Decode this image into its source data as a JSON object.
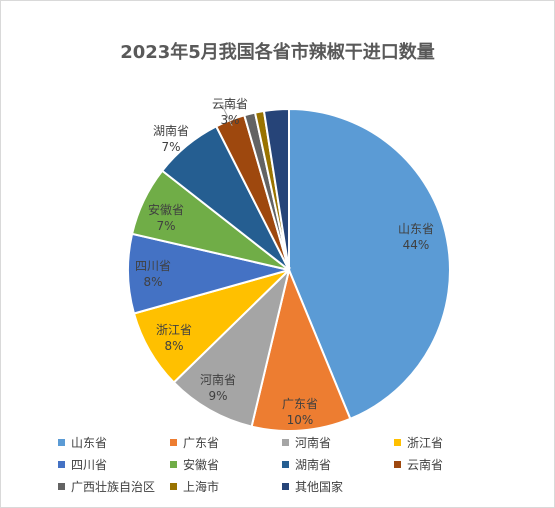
{
  "chart_data": {
    "type": "pie",
    "title": "2023年5月我国各省市辣椒干进口数量",
    "legend_position": "bottom",
    "slices": [
      {
        "name": "山东省",
        "value": 44,
        "label": "44%",
        "color": "#5b9bd5",
        "label_color": "#404040"
      },
      {
        "name": "广东省",
        "value": 10,
        "label": "10%",
        "color": "#ed7d31",
        "label_color": "#404040"
      },
      {
        "name": "河南省",
        "value": 9,
        "label": "9%",
        "color": "#a5a5a5",
        "label_color": "#404040"
      },
      {
        "name": "浙江省",
        "value": 8,
        "label": "8%",
        "color": "#ffc000",
        "label_color": "#404040"
      },
      {
        "name": "四川省",
        "value": 8,
        "label": "8%",
        "color": "#4472c4",
        "label_color": "#404040"
      },
      {
        "name": "安徽省",
        "value": 7,
        "label": "7%",
        "color": "#70ad47",
        "label_color": "#404040"
      },
      {
        "name": "湖南省",
        "value": 7,
        "label": "7%",
        "color": "#255e91",
        "label_color": "#404040"
      },
      {
        "name": "云南省",
        "value": 3,
        "label": "3%",
        "color": "#9e480e",
        "label_color": "#404040"
      },
      {
        "name": "广西壮族自治区",
        "value": 1.1,
        "label": "",
        "color": "#636363",
        "label_color": "#404040"
      },
      {
        "name": "上海市",
        "value": 0.9,
        "label": "",
        "color": "#997300",
        "label_color": "#404040"
      },
      {
        "name": "其他国家",
        "value": 2.5,
        "label": "",
        "color": "#264478",
        "label_color": "#404040"
      }
    ]
  }
}
